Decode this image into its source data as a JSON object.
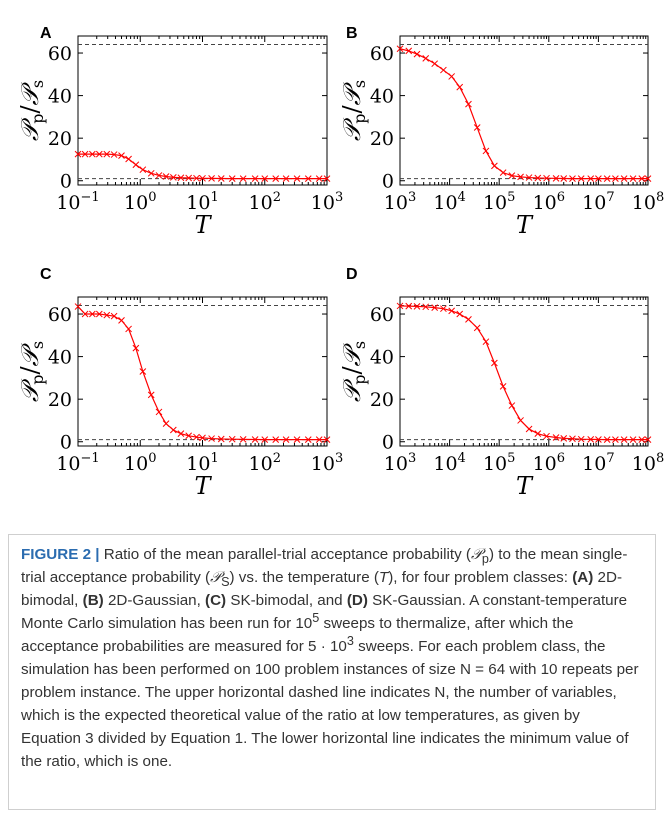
{
  "panels": [
    {
      "letter": "A",
      "xscale": "log",
      "xlim": [
        0.1,
        1000
      ],
      "xticks": [
        {
          "e": -1,
          "label": "10",
          "exp": "−1"
        },
        {
          "e": 0,
          "label": "10",
          "exp": "0"
        },
        {
          "e": 1,
          "label": "10",
          "exp": "1"
        },
        {
          "e": 2,
          "label": "10",
          "exp": "2"
        },
        {
          "e": 3,
          "label": "10",
          "exp": "3"
        }
      ]
    },
    {
      "letter": "B",
      "xscale": "log",
      "xlim": [
        1000,
        100000000
      ],
      "xticks": [
        {
          "e": 3,
          "label": "10",
          "exp": "3"
        },
        {
          "e": 4,
          "label": "10",
          "exp": "4"
        },
        {
          "e": 5,
          "label": "10",
          "exp": "5"
        },
        {
          "e": 6,
          "label": "10",
          "exp": "6"
        },
        {
          "e": 7,
          "label": "10",
          "exp": "7"
        },
        {
          "e": 8,
          "label": "10",
          "exp": "8"
        }
      ]
    },
    {
      "letter": "C",
      "xscale": "log",
      "xlim": [
        0.1,
        1000
      ],
      "xticks": [
        {
          "e": -1,
          "label": "10",
          "exp": "−1"
        },
        {
          "e": 0,
          "label": "10",
          "exp": "0"
        },
        {
          "e": 1,
          "label": "10",
          "exp": "1"
        },
        {
          "e": 2,
          "label": "10",
          "exp": "2"
        },
        {
          "e": 3,
          "label": "10",
          "exp": "3"
        }
      ]
    },
    {
      "letter": "D",
      "xscale": "log",
      "xlim": [
        1000,
        100000000
      ],
      "xticks": [
        {
          "e": 3,
          "label": "10",
          "exp": "3"
        },
        {
          "e": 4,
          "label": "10",
          "exp": "4"
        },
        {
          "e": 5,
          "label": "10",
          "exp": "5"
        },
        {
          "e": 6,
          "label": "10",
          "exp": "6"
        },
        {
          "e": 7,
          "label": "10",
          "exp": "7"
        },
        {
          "e": 8,
          "label": "10",
          "exp": "8"
        }
      ]
    }
  ],
  "axis_text": {
    "xlabel": "T",
    "ylabel_p": "𝒫",
    "ylabel_p_sub": "p",
    "ylabel_s": "𝒫",
    "ylabel_s_sub": "s",
    "ylabel_slash": "/",
    "yticks": [
      "0",
      "20",
      "40",
      "60"
    ]
  },
  "chart_data": [
    {
      "type": "line",
      "panel": "A",
      "xlabel": "T",
      "ylabel": "𝒫p/𝒫s",
      "xscale": "log",
      "xlim": [
        0.1,
        1000
      ],
      "ylim": [
        -2,
        68
      ],
      "hlines": [
        64,
        1
      ],
      "grid": false,
      "marker": "x",
      "color": "#ff0000",
      "x": [
        0.1,
        0.13,
        0.17,
        0.22,
        0.29,
        0.38,
        0.5,
        0.65,
        0.85,
        1.1,
        1.5,
        2,
        2.6,
        3.4,
        4.5,
        6,
        8,
        10,
        14,
        20,
        30,
        45,
        70,
        100,
        150,
        220,
        330,
        500,
        750,
        1000
      ],
      "y": [
        12.5,
        12.5,
        12.5,
        12.5,
        12.5,
        12.3,
        11.8,
        10.2,
        7.5,
        5.2,
        3.5,
        2.5,
        2.0,
        1.6,
        1.4,
        1.3,
        1.2,
        1.15,
        1.1,
        1.05,
        1.0,
        1.0,
        1.0,
        1.0,
        1.0,
        1.0,
        1.0,
        1.0,
        1.0,
        1.0
      ]
    },
    {
      "type": "line",
      "panel": "B",
      "xlabel": "T",
      "ylabel": "𝒫p/𝒫s",
      "xscale": "log",
      "xlim": [
        1000,
        100000000
      ],
      "ylim": [
        -2,
        68
      ],
      "hlines": [
        64,
        1
      ],
      "grid": false,
      "marker": "x",
      "color": "#ff0000",
      "x": [
        1000,
        1500,
        2200,
        3300,
        5000,
        7500,
        11000,
        16000,
        24000,
        36000,
        54000,
        80000,
        120000,
        180000,
        270000,
        400000,
        600000,
        900000,
        1400000,
        2000000,
        3000000,
        4500000,
        7000000,
        10000000,
        15000000,
        22000000,
        33000000,
        50000000,
        75000000,
        100000000
      ],
      "y": [
        62,
        61,
        59.5,
        57.5,
        55,
        52,
        49,
        44,
        36,
        25,
        14,
        7,
        3.8,
        2.4,
        1.8,
        1.5,
        1.3,
        1.2,
        1.1,
        1.05,
        1.0,
        1.0,
        1.0,
        1.0,
        1.0,
        1.0,
        1.0,
        1.0,
        1.0,
        1.0
      ]
    },
    {
      "type": "line",
      "panel": "C",
      "xlabel": "T",
      "ylabel": "𝒫p/𝒫s",
      "xscale": "log",
      "xlim": [
        0.1,
        1000
      ],
      "ylim": [
        -2,
        68
      ],
      "hlines": [
        64,
        1
      ],
      "grid": false,
      "marker": "x",
      "color": "#ff0000",
      "x": [
        0.1,
        0.13,
        0.17,
        0.22,
        0.29,
        0.38,
        0.5,
        0.65,
        0.85,
        1.1,
        1.5,
        2,
        2.6,
        3.4,
        4.5,
        6,
        8,
        10,
        14,
        20,
        30,
        45,
        70,
        100,
        150,
        220,
        330,
        500,
        750,
        1000
      ],
      "y": [
        63.5,
        60,
        60,
        60,
        59.5,
        59,
        57,
        53,
        44,
        33,
        22,
        14,
        8.5,
        5.5,
        3.8,
        2.8,
        2.2,
        1.8,
        1.5,
        1.3,
        1.2,
        1.1,
        1.05,
        1.0,
        1.0,
        1.0,
        1.0,
        1.0,
        1.0,
        1.0
      ]
    },
    {
      "type": "line",
      "panel": "D",
      "xlabel": "T",
      "ylabel": "𝒫p/𝒫s",
      "xscale": "log",
      "xlim": [
        1000,
        100000000
      ],
      "ylim": [
        -2,
        68
      ],
      "hlines": [
        64,
        1
      ],
      "grid": false,
      "marker": "x",
      "color": "#ff0000",
      "x": [
        1000,
        1500,
        2200,
        3300,
        5000,
        7500,
        11000,
        16000,
        24000,
        36000,
        54000,
        80000,
        120000,
        180000,
        270000,
        400000,
        600000,
        900000,
        1400000,
        2000000,
        3000000,
        4500000,
        7000000,
        10000000,
        15000000,
        22000000,
        33000000,
        50000000,
        75000000,
        100000000
      ],
      "y": [
        63.8,
        63.7,
        63.6,
        63.4,
        63.0,
        62.5,
        61.5,
        60,
        57.5,
        53.5,
        47,
        37,
        26,
        17,
        10,
        6,
        3.8,
        2.6,
        2.0,
        1.6,
        1.4,
        1.2,
        1.1,
        1.05,
        1.0,
        1.0,
        1.0,
        1.0,
        1.0,
        1.0
      ]
    }
  ],
  "caption": {
    "label": "FIGURE 2 |",
    "s1": " Ratio of the mean parallel-trial acceptance probability (",
    "pp": "𝒫",
    "pp_sub": "p",
    "s2": ") to the mean single-trial acceptance probability (",
    "ps": "𝒫",
    "ps_sub": "S",
    "s3": ") vs. the temperature (",
    "t": "T",
    "s4": "), for four problem classes: ",
    "a": "(A)",
    "a_text": " 2D-bimodal, ",
    "b": "(B)",
    "b_text": " 2D-Gaussian, ",
    "c": "(C)",
    "c_text": " SK-bimodal, and ",
    "d": "(D)",
    "d_text": " SK-Gaussian. A constant-temperature Monte Carlo simulation has been run for 10",
    "sweeps_exp": "5",
    "s5": " sweeps to thermalize, after which the acceptance probabilities are measured for 5 · 10",
    "meas_exp": "3",
    "s6": " sweeps. For each problem class, the simulation has been performed on 100 problem instances of size N = 64 with 10 repeats per problem instance. The upper horizontal dashed line indicates N, the number of variables, which is the expected theoretical value of the ratio at low temperatures, as given by Equation  3 divided by Equation 1. The lower horizontal line indicates the minimum value of the ratio, which is one."
  }
}
